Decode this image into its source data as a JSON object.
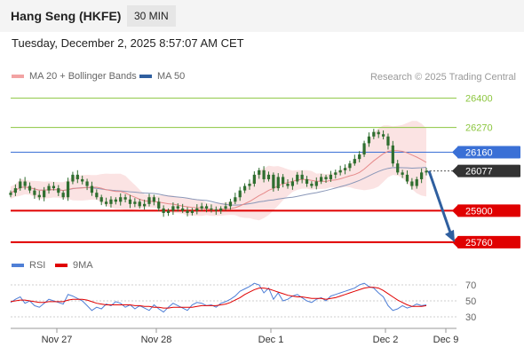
{
  "header": {
    "instrument": "Hang Seng (HKFE)",
    "interval": "30 MIN",
    "datetime": "Tuesday, December 2, 2025 8:57:07 AM CET"
  },
  "legend": {
    "ma20_bb": "MA 20 + Bollinger Bands",
    "ma50": "MA 50",
    "rsi": "RSI",
    "rsi_ma": "9MA"
  },
  "copyright": "Research © 2025 Trading Central",
  "colors": {
    "candle": "#2f6e2f",
    "ma20": "#e68a8a",
    "bollinger_fill": "#fbe3e3",
    "ma50": "#8a97b8",
    "resistance_green": "#8cc63f",
    "pivot_blue": "#3a70d6",
    "support_red": "#e00000",
    "current_price": "#333333",
    "arrow": "#2f5f9f",
    "rsi": "#4f7fd6",
    "rsi_ma": "#e00000"
  },
  "chart_data": [
    {
      "type": "candlestick",
      "title": "Hang Seng (HKFE)",
      "interval": "30 MIN",
      "x_tick_labels": [
        "Nov 27",
        "Nov 28",
        "Dec 1",
        "Dec 2",
        "Dec 9"
      ],
      "ylim": [
        25740,
        26450
      ],
      "levels": [
        {
          "value": 26400,
          "label": "26400",
          "kind": "resistance"
        },
        {
          "value": 26270,
          "label": "26270",
          "kind": "resistance"
        },
        {
          "value": 26160,
          "label": "26160",
          "kind": "pivot"
        },
        {
          "value": 26077,
          "label": "26077",
          "kind": "current"
        },
        {
          "value": 25900,
          "label": "25900",
          "kind": "support"
        },
        {
          "value": 25760,
          "label": "25760",
          "kind": "support"
        }
      ],
      "close_series": [
        25980,
        26000,
        26030,
        26010,
        25990,
        25970,
        25960,
        25990,
        26010,
        26000,
        25980,
        25960,
        26030,
        26060,
        26040,
        26030,
        26010,
        25980,
        25960,
        25940,
        25930,
        25950,
        25940,
        25960,
        25950,
        25930,
        25940,
        25920,
        25930,
        25960,
        25940,
        25910,
        25890,
        25900,
        25920,
        25910,
        25900,
        25890,
        25900,
        25910,
        25920,
        25910,
        25905,
        25900,
        25910,
        25920,
        25940,
        25960,
        25990,
        26010,
        26020,
        26060,
        26080,
        26040,
        26060,
        26000,
        26050,
        26020,
        26010,
        26030,
        26060,
        26040,
        26020,
        26010,
        26030,
        26050,
        26040,
        26060,
        26070,
        26080,
        26090,
        26110,
        26130,
        26150,
        26200,
        26230,
        26250,
        26240,
        26230,
        26190,
        26110,
        26070,
        26060,
        26030,
        26010,
        26040,
        26070,
        26077
      ],
      "ma20_last": 26130,
      "ma50_last": 26075,
      "forecast_arrow": {
        "from": 26077,
        "to": 25760
      }
    },
    {
      "type": "line",
      "title": "RSI",
      "ylim": [
        20,
        80
      ],
      "y_ticks": [
        30,
        50,
        70
      ],
      "series": [
        {
          "name": "RSI",
          "values": [
            48,
            52,
            55,
            47,
            50,
            44,
            42,
            47,
            52,
            50,
            48,
            46,
            58,
            56,
            53,
            50,
            44,
            38,
            42,
            40,
            46,
            44,
            49,
            47,
            42,
            45,
            40,
            44,
            41,
            38,
            45,
            40,
            36,
            42,
            47,
            44,
            41,
            38,
            45,
            48,
            47,
            44,
            45,
            42,
            47,
            49,
            52,
            56,
            62,
            65,
            68,
            72,
            70,
            60,
            66,
            52,
            60,
            50,
            52,
            56,
            58,
            54,
            50,
            48,
            52,
            54,
            50,
            56,
            58,
            60,
            62,
            64,
            66,
            70,
            72,
            68,
            66,
            60,
            55,
            44,
            38,
            40,
            44,
            41,
            43,
            46,
            44,
            45
          ]
        },
        {
          "name": "9MA",
          "values": [
            49,
            50,
            51,
            51,
            50,
            49,
            48,
            48,
            49,
            49,
            49,
            49,
            51,
            52,
            52,
            52,
            51,
            49,
            47,
            46,
            45,
            45,
            45,
            45,
            45,
            45,
            44,
            44,
            43,
            43,
            42,
            42,
            41,
            41,
            42,
            42,
            42,
            42,
            42,
            43,
            44,
            44,
            44,
            44,
            45,
            46,
            48,
            51,
            54,
            58,
            61,
            64,
            66,
            66,
            65,
            63,
            61,
            59,
            57,
            56,
            55,
            55,
            54,
            53,
            53,
            53,
            52,
            53,
            54,
            56,
            58,
            60,
            62,
            64,
            66,
            67,
            67,
            66,
            63,
            59,
            55,
            51,
            48,
            45,
            43,
            43,
            43,
            44
          ]
        }
      ]
    }
  ]
}
